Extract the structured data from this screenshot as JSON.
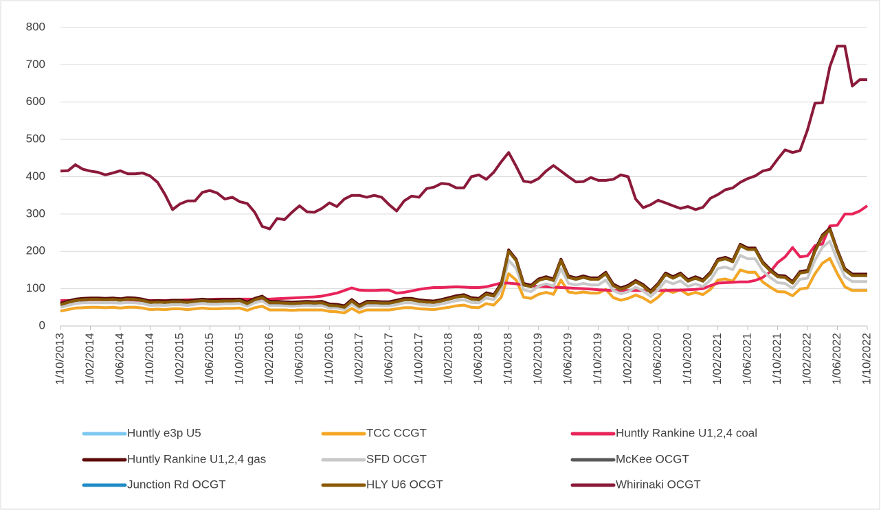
{
  "chart_data": {
    "type": "line",
    "categories": [
      "1/10/2013",
      null,
      null,
      null,
      "1/02/2014",
      null,
      null,
      null,
      "1/06/2014",
      null,
      null,
      null,
      "1/10/2014",
      null,
      null,
      null,
      "1/02/2015",
      null,
      null,
      null,
      "1/06/2015",
      null,
      null,
      null,
      "1/10/2015",
      null,
      null,
      null,
      "1/02/2016",
      null,
      null,
      null,
      "1/06/2016",
      null,
      null,
      null,
      "1/10/2016",
      null,
      null,
      null,
      "1/02/2017",
      null,
      null,
      null,
      "1/06/2017",
      null,
      null,
      null,
      "1/10/2017",
      null,
      null,
      null,
      "1/02/2018",
      null,
      null,
      null,
      "1/06/2018",
      null,
      null,
      null,
      "1/10/2018",
      null,
      null,
      null,
      "1/02/2019",
      null,
      null,
      null,
      "1/06/2019",
      null,
      null,
      null,
      "1/10/2019",
      null,
      null,
      null,
      "1/02/2020",
      null,
      null,
      null,
      "1/06/2020",
      null,
      null,
      null,
      "1/10/2020",
      null,
      null,
      null,
      "1/02/2021",
      null,
      null,
      null,
      "1/06/2021",
      null,
      null,
      null,
      "1/10/2021",
      null,
      null,
      null,
      "1/02/2022",
      null,
      null,
      null,
      "1/06/2022",
      null,
      null,
      null,
      "1/10/2022"
    ],
    "series": [
      {
        "name": "Huntly e3p U5",
        "color": "#7ec8f0",
        "values": [
          40,
          44,
          48,
          49,
          50,
          50,
          49,
          50,
          48,
          50,
          50,
          48,
          44,
          45,
          44,
          46,
          46,
          44,
          46,
          48,
          46,
          46,
          47,
          47,
          48,
          42,
          49,
          53,
          43,
          43,
          43,
          42,
          43,
          43,
          43,
          43,
          39,
          38,
          35,
          47,
          36,
          43,
          43,
          43,
          43,
          46,
          49,
          49,
          46,
          45,
          44,
          47,
          50,
          54,
          56,
          50,
          49,
          60,
          56,
          77,
          140,
          123,
          77,
          74,
          85,
          90,
          85,
          123,
          91,
          88,
          91,
          88,
          88,
          98,
          76,
          69,
          74,
          83,
          75,
          63,
          77,
          97,
          90,
          97,
          84,
          90,
          84,
          98,
          123,
          126,
          120,
          150,
          144,
          144,
          118,
          104,
          92,
          91,
          81,
          99,
          102,
          140,
          168,
          181,
          140,
          105,
          95,
          95,
          95
        ]
      },
      {
        "name": "TCC CCGT",
        "color": "#f5a623",
        "values": [
          40,
          44,
          48,
          49,
          50,
          50,
          49,
          50,
          48,
          50,
          50,
          48,
          44,
          45,
          44,
          46,
          46,
          44,
          46,
          48,
          46,
          46,
          47,
          47,
          48,
          42,
          49,
          53,
          43,
          43,
          43,
          42,
          43,
          43,
          43,
          43,
          39,
          38,
          35,
          47,
          36,
          43,
          43,
          43,
          43,
          46,
          49,
          49,
          46,
          45,
          44,
          47,
          50,
          54,
          56,
          50,
          49,
          60,
          56,
          77,
          140,
          123,
          77,
          74,
          85,
          90,
          85,
          123,
          91,
          88,
          91,
          88,
          88,
          98,
          76,
          69,
          74,
          83,
          75,
          63,
          77,
          97,
          90,
          97,
          84,
          90,
          84,
          98,
          123,
          126,
          120,
          150,
          144,
          144,
          118,
          104,
          92,
          91,
          81,
          99,
          102,
          140,
          168,
          181,
          140,
          105,
          95,
          95,
          95
        ]
      },
      {
        "name": "Huntly Rankine U1,2,4 coal",
        "color": "#e8245a",
        "values": [
          68,
          68,
          69,
          69,
          70,
          70,
          70,
          70,
          70,
          70,
          69,
          68,
          68,
          68,
          68,
          69,
          69,
          70,
          70,
          70,
          71,
          72,
          72,
          72,
          72,
          72,
          72,
          72,
          72,
          73,
          74,
          75,
          76,
          77,
          78,
          80,
          84,
          88,
          95,
          102,
          96,
          95,
          95,
          96,
          96,
          88,
          90,
          94,
          98,
          101,
          103,
          103,
          104,
          105,
          104,
          103,
          103,
          105,
          110,
          115,
          115,
          113,
          110,
          107,
          106,
          105,
          104,
          103,
          102,
          101,
          100,
          99,
          97,
          96,
          95,
          95,
          95,
          95,
          95,
          95,
          95,
          95,
          96,
          96,
          97,
          98,
          100,
          108,
          115,
          116,
          117,
          118,
          118,
          122,
          130,
          145,
          170,
          185,
          210,
          185,
          188,
          215,
          220,
          268,
          270,
          300,
          300,
          308,
          322
        ]
      },
      {
        "name": "Huntly Rankine U1,2,4 gas",
        "color": "#5c0a0a",
        "values": [
          61,
          67,
          72,
          74,
          75,
          75,
          74,
          75,
          73,
          76,
          75,
          72,
          67,
          68,
          67,
          69,
          69,
          67,
          70,
          72,
          70,
          70,
          71,
          71,
          72,
          64,
          74,
          80,
          66,
          66,
          65,
          64,
          65,
          66,
          65,
          66,
          59,
          58,
          54,
          71,
          56,
          66,
          66,
          65,
          65,
          69,
          74,
          74,
          70,
          68,
          67,
          71,
          76,
          81,
          84,
          76,
          74,
          89,
          84,
          114,
          204,
          179,
          114,
          109,
          126,
          132,
          126,
          179,
          134,
          129,
          134,
          129,
          129,
          144,
          112,
          102,
          109,
          122,
          111,
          94,
          114,
          142,
          132,
          142,
          124,
          132,
          124,
          144,
          179,
          184,
          176,
          219,
          209,
          209,
          172,
          152,
          136,
          134,
          119,
          146,
          149,
          204,
          244,
          262,
          204,
          154,
          139,
          139,
          139
        ]
      },
      {
        "name": "SFD OCGT",
        "color": "#c8c8c8",
        "values": [
          50,
          55,
          60,
          62,
          62,
          62,
          62,
          62,
          61,
          63,
          62,
          60,
          55,
          56,
          55,
          57,
          57,
          55,
          58,
          60,
          58,
          58,
          59,
          59,
          60,
          53,
          62,
          67,
          55,
          55,
          54,
          53,
          54,
          55,
          54,
          55,
          48,
          48,
          44,
          59,
          46,
          55,
          55,
          54,
          54,
          57,
          62,
          62,
          58,
          56,
          55,
          59,
          63,
          68,
          70,
          63,
          62,
          75,
          70,
          97,
          176,
          154,
          97,
          92,
          107,
          113,
          107,
          154,
          114,
          110,
          114,
          110,
          110,
          123,
          95,
          86,
          92,
          104,
          94,
          79,
          97,
          121,
          113,
          121,
          106,
          113,
          106,
          123,
          154,
          158,
          151,
          189,
          180,
          180,
          148,
          130,
          116,
          114,
          101,
          125,
          128,
          176,
          211,
          227,
          176,
          132,
          119,
          119,
          119
        ]
      },
      {
        "name": "McKee OCGT",
        "color": "#595959",
        "values": [
          57,
          63,
          68,
          70,
          71,
          71,
          70,
          71,
          69,
          72,
          71,
          68,
          63,
          64,
          63,
          65,
          65,
          63,
          66,
          68,
          66,
          66,
          67,
          67,
          68,
          60,
          70,
          76,
          62,
          62,
          61,
          60,
          61,
          62,
          61,
          62,
          55,
          54,
          50,
          67,
          52,
          62,
          62,
          61,
          61,
          65,
          70,
          70,
          66,
          64,
          63,
          67,
          72,
          77,
          80,
          72,
          70,
          85,
          80,
          110,
          200,
          175,
          110,
          105,
          122,
          128,
          122,
          175,
          130,
          125,
          130,
          125,
          125,
          140,
          108,
          98,
          105,
          118,
          107,
          90,
          110,
          138,
          128,
          138,
          120,
          128,
          120,
          140,
          175,
          180,
          172,
          215,
          205,
          205,
          168,
          148,
          132,
          130,
          115,
          142,
          145,
          200,
          240,
          258,
          200,
          150,
          135,
          135,
          135
        ]
      },
      {
        "name": "Junction Rd OCGT",
        "color": "#1f8bc4",
        "values": [
          57,
          63,
          68,
          70,
          71,
          71,
          70,
          71,
          69,
          72,
          71,
          68,
          63,
          64,
          63,
          65,
          65,
          63,
          66,
          68,
          66,
          66,
          67,
          67,
          68,
          60,
          70,
          76,
          62,
          62,
          61,
          60,
          61,
          62,
          61,
          62,
          55,
          54,
          50,
          67,
          52,
          62,
          62,
          61,
          61,
          65,
          70,
          70,
          66,
          64,
          63,
          67,
          72,
          77,
          80,
          72,
          70,
          85,
          80,
          110,
          200,
          175,
          110,
          105,
          122,
          128,
          122,
          175,
          130,
          125,
          130,
          125,
          125,
          140,
          108,
          98,
          105,
          118,
          107,
          90,
          110,
          138,
          128,
          138,
          120,
          128,
          120,
          140,
          175,
          180,
          172,
          215,
          205,
          205,
          168,
          148,
          132,
          130,
          115,
          142,
          145,
          200,
          240,
          258,
          200,
          150,
          135,
          135,
          135
        ]
      },
      {
        "name": "HLY U6 OCGT",
        "color": "#8b5a00",
        "values": [
          57,
          63,
          68,
          70,
          71,
          71,
          70,
          71,
          69,
          72,
          71,
          68,
          63,
          64,
          63,
          65,
          65,
          63,
          66,
          68,
          66,
          66,
          67,
          67,
          68,
          60,
          70,
          76,
          62,
          62,
          61,
          60,
          61,
          62,
          61,
          62,
          55,
          54,
          50,
          67,
          52,
          62,
          62,
          61,
          61,
          65,
          70,
          70,
          66,
          64,
          63,
          67,
          72,
          77,
          80,
          72,
          70,
          85,
          80,
          110,
          200,
          175,
          110,
          105,
          122,
          128,
          122,
          175,
          130,
          125,
          130,
          125,
          125,
          140,
          108,
          98,
          105,
          118,
          107,
          90,
          110,
          138,
          128,
          138,
          120,
          128,
          120,
          140,
          175,
          180,
          172,
          215,
          205,
          205,
          168,
          148,
          132,
          130,
          115,
          142,
          145,
          200,
          240,
          258,
          200,
          150,
          135,
          135,
          135
        ]
      },
      {
        "name": "Whirinaki OCGT",
        "color": "#8b1a3a",
        "values": [
          415,
          416,
          432,
          420,
          415,
          412,
          405,
          410,
          416,
          408,
          408,
          410,
          402,
          385,
          352,
          312,
          327,
          335,
          335,
          358,
          363,
          356,
          340,
          345,
          333,
          328,
          305,
          267,
          260,
          288,
          285,
          305,
          322,
          306,
          305,
          315,
          330,
          320,
          340,
          350,
          350,
          345,
          350,
          345,
          325,
          308,
          335,
          348,
          345,
          368,
          372,
          382,
          380,
          370,
          370,
          400,
          405,
          393,
          412,
          440,
          465,
          428,
          388,
          385,
          395,
          415,
          430,
          415,
          400,
          386,
          387,
          398,
          390,
          390,
          393,
          405,
          400,
          340,
          317,
          325,
          337,
          330,
          322,
          315,
          320,
          312,
          318,
          342,
          352,
          365,
          370,
          385,
          395,
          402,
          415,
          420,
          447,
          472,
          465,
          470,
          525,
          597,
          598,
          695,
          750,
          750,
          643,
          660,
          660
        ]
      }
    ],
    "ylim": [
      0,
      800
    ],
    "yticks": [
      0,
      100,
      200,
      300,
      400,
      500,
      600,
      700,
      800
    ],
    "grid": true
  }
}
